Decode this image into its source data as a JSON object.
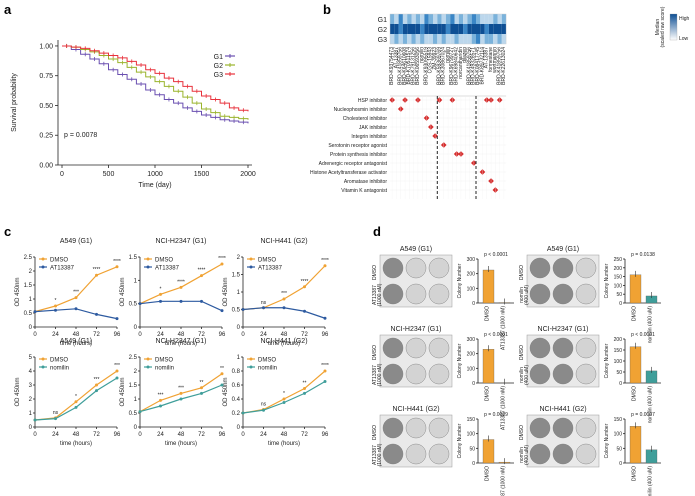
{
  "panel_labels": [
    "a",
    "b",
    "c",
    "d"
  ],
  "colors": {
    "g1": "#6a4fb0",
    "g2": "#9ab42c",
    "g3": "#e8323c",
    "orange": "#f0a233",
    "blue": "#2d5aa0",
    "teal": "#3f9e9a",
    "red_diamond": "#d62d2d"
  },
  "chart_data": [
    {
      "type": "line",
      "panel": "a",
      "xlabel": "Time (day)",
      "ylabel": "Survival probability",
      "xlim": [
        0,
        2000
      ],
      "ylim": [
        0,
        1.05
      ],
      "xticks": [
        0,
        500,
        1000,
        1500,
        2000
      ],
      "yticks": [
        0.0,
        0.25,
        0.5,
        0.75,
        1.0
      ],
      "annotation": "p = 0.0078",
      "legend": "top-right",
      "series": [
        {
          "name": "G1",
          "color": "#6a4fb0",
          "x": [
            0,
            100,
            200,
            300,
            400,
            500,
            600,
            700,
            800,
            900,
            1000,
            1100,
            1200,
            1300,
            1400,
            1500,
            1600,
            1700,
            1800,
            1900,
            2000
          ],
          "y": [
            1.0,
            0.97,
            0.93,
            0.89,
            0.85,
            0.8,
            0.76,
            0.72,
            0.68,
            0.63,
            0.59,
            0.55,
            0.52,
            0.48,
            0.45,
            0.42,
            0.4,
            0.38,
            0.37,
            0.36,
            0.35
          ]
        },
        {
          "name": "G2",
          "color": "#9ab42c",
          "x": [
            0,
            100,
            200,
            300,
            400,
            500,
            600,
            700,
            800,
            900,
            1000,
            1100,
            1200,
            1300,
            1400,
            1500,
            1600,
            1700,
            1800,
            1900,
            2000
          ],
          "y": [
            1.0,
            0.99,
            0.97,
            0.95,
            0.92,
            0.89,
            0.86,
            0.82,
            0.78,
            0.74,
            0.7,
            0.66,
            0.62,
            0.57,
            0.52,
            0.47,
            0.44,
            0.41,
            0.4,
            0.39,
            0.38
          ]
        },
        {
          "name": "G3",
          "color": "#e8323c",
          "x": [
            0,
            100,
            200,
            300,
            400,
            500,
            600,
            700,
            800,
            900,
            1000,
            1100,
            1200,
            1300,
            1400,
            1500,
            1600,
            1700,
            1800,
            1900,
            2000
          ],
          "y": [
            1.0,
            0.99,
            0.98,
            0.96,
            0.94,
            0.92,
            0.9,
            0.87,
            0.84,
            0.8,
            0.77,
            0.73,
            0.7,
            0.66,
            0.62,
            0.58,
            0.55,
            0.52,
            0.48,
            0.46,
            0.45
          ]
        }
      ]
    },
    {
      "type": "heatmap",
      "panel": "b",
      "rows": [
        "G1",
        "G2",
        "G3"
      ],
      "legend_title": "Median\n(scaled raw score)",
      "legend_labels": [
        "High",
        "Low"
      ],
      "columns": [
        "BRD-K93754473",
        "AT-13387",
        "BRD-K41859756",
        "BRD-K64610608",
        "BRD-K70511574",
        "BRD-K79131256",
        "BRD-K06593056",
        "nomilin",
        "BRD-K93095519",
        "CGS-15943",
        "ZM-39923",
        "BRD-K59369769",
        "BRD-K30867024",
        "nomilin",
        "BRD-K96799727",
        "BRD-K69840642",
        "norcantharidin",
        "dilazep",
        "BRD-K41859756",
        "BRD-K49328571",
        "BRD-K08417745",
        "BRD-K89732114",
        "AT-13387",
        "formestane",
        "wortmannin",
        "BRD-K41859756",
        "BRD-K22613024"
      ],
      "column_colors": [
        "#9ab42c",
        "#9ab42c",
        "#9ab42c",
        "#9ab42c",
        "#9ab42c",
        "#9ab42c",
        "#9ab42c",
        "#9ab42c",
        "#9ab42c",
        "#9ab42c",
        "#9ab42c",
        "#6a4fb0",
        "#6a4fb0",
        "#6a4fb0",
        "#6a4fb0",
        "#6a4fb0",
        "#6a4fb0",
        "#6a4fb0",
        "#6a4fb0",
        "#6a4fb0",
        "#e8323c",
        "#e8323c",
        "#e8323c",
        "#e8323c",
        "#e8323c",
        "#e8323c",
        "#e8323c"
      ],
      "g1": [
        2,
        1,
        3,
        1,
        2,
        1,
        2,
        1,
        3,
        2,
        1,
        2,
        1,
        2,
        3,
        1,
        2,
        1,
        2,
        3,
        2,
        1,
        1,
        1,
        2,
        1,
        2
      ],
      "g2": [
        4,
        4,
        3,
        4,
        4,
        4,
        4,
        3,
        4,
        4,
        4,
        4,
        4,
        3,
        4,
        4,
        4,
        3,
        4,
        4,
        4,
        4,
        3,
        4,
        4,
        4,
        4
      ],
      "g3": [
        1,
        2,
        1,
        2,
        1,
        2,
        1,
        2,
        1,
        1,
        2,
        1,
        2,
        1,
        1,
        2,
        1,
        1,
        1,
        2,
        3,
        1,
        2,
        2,
        1,
        2,
        1
      ],
      "moa": [
        "HSP inhibitor",
        "Nucleophosmin inhibitor",
        "Cholesterol inhibitor",
        "JAK inhibitor",
        "Integrin inhibitor",
        "Serotonin receptor agonist",
        "Protein synthesis inhibitor",
        "Adrenergic receptor antagonist",
        "Histone Acetyltransferase activator",
        "Aromatase inhibitor",
        "Vitamin K antagonist"
      ],
      "moa_hits": [
        [
          0,
          3,
          6,
          11,
          14,
          22,
          23,
          25
        ],
        [
          2
        ],
        [
          8
        ],
        [
          9
        ],
        [
          10
        ],
        [
          12
        ],
        [
          15,
          16
        ],
        [
          19
        ],
        [
          21
        ],
        [
          23
        ],
        [
          24
        ]
      ]
    },
    {
      "type": "line",
      "panel": "c",
      "title": "A549 (G1)",
      "xlabel": "time (hours)",
      "ylabel": "OD 450nm",
      "ylim": [
        0,
        2.5
      ],
      "yticks": [
        0,
        0.5,
        1.0,
        1.5,
        2.0,
        2.5
      ],
      "xticks": [
        0,
        24,
        48,
        72,
        96
      ],
      "series": [
        {
          "name": "DMSO",
          "color": "#f0a233",
          "x": [
            0,
            24,
            48,
            72,
            96
          ],
          "y": [
            0.55,
            0.75,
            1.05,
            1.85,
            2.15
          ]
        },
        {
          "name": "AT13387",
          "color": "#2d5aa0",
          "x": [
            0,
            24,
            48,
            72,
            96
          ],
          "y": [
            0.55,
            0.6,
            0.65,
            0.45,
            0.3
          ]
        }
      ],
      "signif": [
        "*",
        "***",
        "****",
        "****"
      ]
    },
    {
      "type": "line",
      "panel": "c",
      "title": "NCI-H2347 (G1)",
      "xlabel": "time (hours)",
      "ylabel": "OD 450nm",
      "ylim": [
        0,
        1.5
      ],
      "yticks": [
        0,
        0.5,
        1.0,
        1.5
      ],
      "xticks": [
        0,
        24,
        48,
        72,
        96
      ],
      "series": [
        {
          "name": "DMSO",
          "color": "#f0a233",
          "x": [
            0,
            24,
            48,
            72,
            96
          ],
          "y": [
            0.5,
            0.7,
            0.85,
            1.1,
            1.35
          ]
        },
        {
          "name": "AT13387",
          "color": "#2d5aa0",
          "x": [
            0,
            24,
            48,
            72,
            96
          ],
          "y": [
            0.5,
            0.55,
            0.55,
            0.55,
            0.35
          ]
        }
      ],
      "signif": [
        "*",
        "****",
        "****",
        "****"
      ]
    },
    {
      "type": "line",
      "panel": "c",
      "title": "NCI-H441 (G2)",
      "xlabel": "time (hours)",
      "ylabel": "OD 450nm",
      "ylim": [
        0,
        2.0
      ],
      "yticks": [
        0,
        0.5,
        1.0,
        1.5,
        2.0
      ],
      "xticks": [
        0,
        24,
        48,
        72,
        96
      ],
      "series": [
        {
          "name": "DMSO",
          "color": "#f0a233",
          "x": [
            0,
            24,
            48,
            72,
            96
          ],
          "y": [
            0.5,
            0.55,
            0.8,
            1.15,
            1.75
          ]
        },
        {
          "name": "AT13387",
          "color": "#2d5aa0",
          "x": [
            0,
            24,
            48,
            72,
            96
          ],
          "y": [
            0.5,
            0.55,
            0.55,
            0.45,
            0.25
          ]
        }
      ],
      "signif": [
        "ns",
        "***",
        "****",
        "****"
      ]
    },
    {
      "type": "line",
      "panel": "c",
      "title": "A549 (G1)",
      "xlabel": "time (hours)",
      "ylabel": "OD 450nm",
      "ylim": [
        0,
        5
      ],
      "yticks": [
        0,
        1,
        2,
        3,
        4,
        5
      ],
      "xticks": [
        0,
        24,
        48,
        72,
        96
      ],
      "series": [
        {
          "name": "DMSO",
          "color": "#f0a233",
          "x": [
            0,
            24,
            48,
            72,
            96
          ],
          "y": [
            0.5,
            0.65,
            1.8,
            3.0,
            4.0
          ]
        },
        {
          "name": "nomilin",
          "color": "#3f9e9a",
          "x": [
            0,
            24,
            48,
            72,
            96
          ],
          "y": [
            0.5,
            0.6,
            1.4,
            2.6,
            3.5
          ]
        }
      ],
      "signif": [
        "ns",
        "*",
        "***",
        "***"
      ]
    },
    {
      "type": "line",
      "panel": "c",
      "title": "NCI-H2347 (G1)",
      "xlabel": "time (hours)",
      "ylabel": "OD 450nm",
      "ylim": [
        0,
        2.5
      ],
      "yticks": [
        0,
        0.5,
        1.0,
        1.5,
        2.0,
        2.5
      ],
      "xticks": [
        0,
        24,
        48,
        72,
        96
      ],
      "series": [
        {
          "name": "DMSO",
          "color": "#f0a233",
          "x": [
            0,
            24,
            48,
            72,
            96
          ],
          "y": [
            0.55,
            0.95,
            1.2,
            1.4,
            1.9
          ]
        },
        {
          "name": "nomilin",
          "color": "#3f9e9a",
          "x": [
            0,
            24,
            48,
            72,
            96
          ],
          "y": [
            0.55,
            0.75,
            1.0,
            1.2,
            1.5
          ]
        }
      ],
      "signif": [
        "***",
        "***",
        "**",
        "**"
      ]
    },
    {
      "type": "line",
      "panel": "c",
      "title": "NCI-H441 (G2)",
      "xlabel": "time (hours)",
      "ylabel": "OD 450nm",
      "ylim": [
        0,
        1.0
      ],
      "yticks": [
        0,
        0.2,
        0.4,
        0.6,
        0.8,
        1.0
      ],
      "xticks": [
        0,
        24,
        48,
        72,
        96
      ],
      "series": [
        {
          "name": "DMSO",
          "color": "#f0a233",
          "x": [
            0,
            24,
            48,
            72,
            96
          ],
          "y": [
            0.2,
            0.25,
            0.4,
            0.55,
            0.8
          ]
        },
        {
          "name": "nomilin",
          "color": "#3f9e9a",
          "x": [
            0,
            24,
            48,
            72,
            96
          ],
          "y": [
            0.2,
            0.24,
            0.35,
            0.48,
            0.65
          ]
        }
      ],
      "signif": [
        "ns",
        "*",
        "**",
        "****"
      ]
    },
    {
      "type": "bar",
      "panel": "d",
      "title": "A549 (G1)",
      "ylabel": "Colony Number",
      "categories": [
        "DMSO",
        "AT13387 (1000 nM)"
      ],
      "values": [
        225,
        3
      ],
      "ylim": [
        0,
        300
      ],
      "yticks": [
        0,
        100,
        200,
        300
      ],
      "pvalue": "p < 0.0001",
      "color": "#f0a233"
    },
    {
      "type": "bar",
      "panel": "d",
      "title": "A549 (G1)",
      "ylabel": "Colony Number",
      "categories": [
        "DMSO",
        "nomilin (400 uM)"
      ],
      "values": [
        160,
        40
      ],
      "ylim": [
        0,
        250
      ],
      "yticks": [
        0,
        50,
        100,
        150,
        200,
        250
      ],
      "pvalue": "p = 0.0138",
      "colors": [
        "#f0a233",
        "#3f9e9a"
      ]
    },
    {
      "type": "bar",
      "panel": "d",
      "title": "NCI-H2347 (G1)",
      "ylabel": "Colony Number",
      "categories": [
        "DMSO",
        "AT13387 (1000 nM)"
      ],
      "values": [
        230,
        2
      ],
      "ylim": [
        0,
        300
      ],
      "yticks": [
        0,
        100,
        200,
        300
      ],
      "pvalue": "p < 0.0001",
      "color": "#f0a233"
    },
    {
      "type": "bar",
      "panel": "d",
      "title": "NCI-H2347 (G1)",
      "ylabel": "Colony Number",
      "categories": [
        "DMSO",
        "nomilin (400 uM)"
      ],
      "values": [
        165,
        55
      ],
      "ylim": [
        0,
        200
      ],
      "yticks": [
        0,
        50,
        100,
        150,
        200
      ],
      "pvalue": "p < 0.0001",
      "colors": [
        "#f0a233",
        "#3f9e9a"
      ]
    },
    {
      "type": "bar",
      "panel": "d",
      "title": "NCI-H441 (G2)",
      "ylabel": "Colony Number",
      "categories": [
        "DMSO",
        "AT13387 (1000 nM)"
      ],
      "values": [
        80,
        3
      ],
      "ylim": [
        0,
        150
      ],
      "yticks": [
        0,
        50,
        100,
        150
      ],
      "pvalue": "p = 0.0029",
      "color": "#f0a233"
    },
    {
      "type": "bar",
      "panel": "d",
      "title": "NCI-H441 (G2)",
      "ylabel": "Colony Number",
      "categories": [
        "DMSO",
        "nomilin (400 uM)"
      ],
      "values": [
        125,
        45
      ],
      "ylim": [
        0,
        150
      ],
      "yticks": [
        0,
        50,
        100,
        150
      ],
      "pvalue": "p = 0.0007",
      "colors": [
        "#f0a233",
        "#3f9e9a"
      ]
    }
  ],
  "d_plate_labels": [
    {
      "left": "AT13387\n(1000 nM)",
      "right": "nomilin\n(400 uM)",
      "dmso": "DMSO"
    }
  ]
}
